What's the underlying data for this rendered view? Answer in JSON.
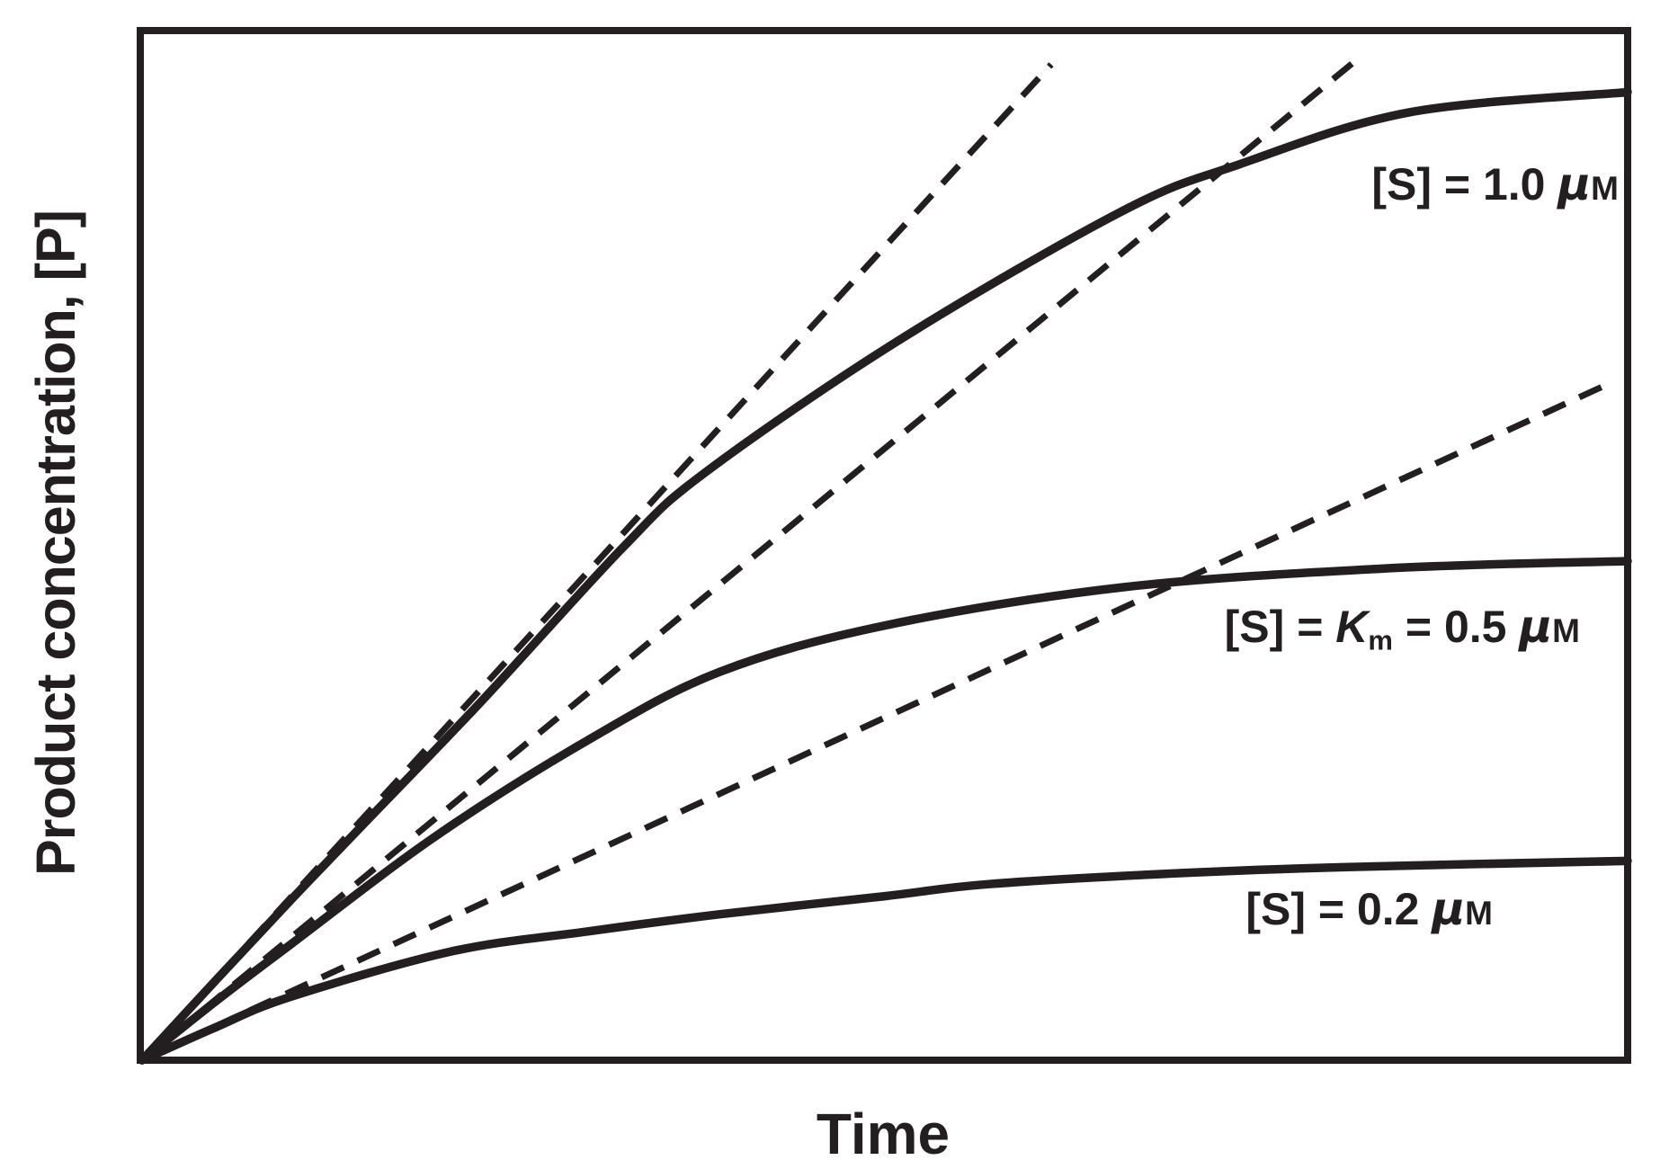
{
  "figure": {
    "background": "#ffffff",
    "ink_color": "#231f20"
  },
  "chart_data": {
    "type": "line",
    "xlabel": "Time",
    "ylabel": "Product concentration, [P]",
    "x_axis": {
      "label": "Time",
      "range": [
        0,
        1
      ],
      "ticks": [],
      "units": "arbitrary"
    },
    "y_axis": {
      "label": "Product concentration, [P]",
      "range_uM": [
        0,
        1.05
      ],
      "ticks": [],
      "units": "μM"
    },
    "grid": false,
    "legend_position": "labels-on-plot",
    "km_uM": 0.5,
    "substrate_concentrations_uM": [
      1.0,
      0.5,
      0.2
    ],
    "series": [
      {
        "name": "S_1.0uM",
        "label": "[S] = 1.0 μM",
        "substrate_uM": 1.0,
        "style": "solid",
        "t": [
          0,
          0.05,
          0.1,
          0.15,
          0.228,
          0.324,
          0.379,
          0.509,
          0.66,
          0.738,
          0.853,
          1.0
        ],
        "P_uM": [
          0,
          0.08,
          0.159,
          0.236,
          0.356,
          0.51,
          0.584,
          0.715,
          0.844,
          0.89,
          0.942,
          0.962
        ],
        "label_parts": [
          {
            "text": "[S] = 1.0 "
          },
          {
            "text": "μ",
            "style": "mu"
          },
          {
            "text": "M",
            "style": "smallcap"
          }
        ]
      },
      {
        "name": "S_0.5uM",
        "label": "[S] = Km = 0.5 μM",
        "substrate_uM": 0.5,
        "style": "solid",
        "t": [
          0,
          0.05,
          0.1,
          0.198,
          0.3,
          0.389,
          0.5,
          0.66,
          0.841,
          1.0
        ],
        "P_uM": [
          0,
          0.059,
          0.115,
          0.223,
          0.318,
          0.386,
          0.432,
          0.47,
          0.489,
          0.496
        ],
        "label_parts": [
          {
            "text": "[S] = "
          },
          {
            "text": "K",
            "style": "ital"
          },
          {
            "text": "m",
            "style": "subscript"
          },
          {
            "text": " = 0.5 "
          },
          {
            "text": "μ",
            "style": "mu"
          },
          {
            "text": "M",
            "style": "smallcap"
          }
        ]
      },
      {
        "name": "S_0.2uM",
        "label": "[S] = 0.2 μM",
        "substrate_uM": 0.2,
        "style": "solid",
        "t": [
          0,
          0.05,
          0.1,
          0.208,
          0.3,
          0.389,
          0.5,
          0.57,
          0.7,
          0.811,
          1.0
        ],
        "P_uM": [
          0,
          0.033,
          0.063,
          0.108,
          0.128,
          0.145,
          0.163,
          0.175,
          0.186,
          0.192,
          0.198
        ],
        "label_parts": [
          {
            "text": "[S] = 0.2 "
          },
          {
            "text": "μ",
            "style": "mu"
          },
          {
            "text": "M",
            "style": "smallcap"
          }
        ]
      }
    ],
    "initial_velocity_tangents": [
      {
        "for": "S_1.0uM",
        "style": "dashed",
        "v0_uM_per_time": 1.617,
        "t_end": 0.612,
        "P_end_uM": 0.99
      },
      {
        "for": "S_0.5uM",
        "style": "dashed",
        "v0_uM_per_time": 1.216,
        "t_end": 0.818,
        "P_end_uM": 0.995
      },
      {
        "for": "S_0.2uM",
        "style": "dashed",
        "v0_uM_per_time": 0.681,
        "t_end": 0.984,
        "P_end_uM": 0.67
      }
    ]
  }
}
